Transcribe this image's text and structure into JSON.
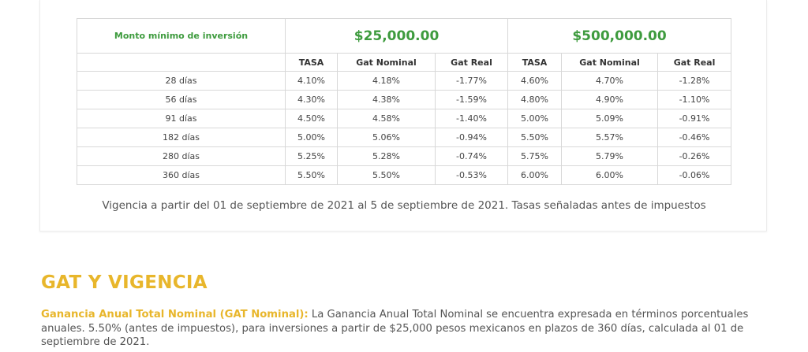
{
  "table": {
    "min_label": "Monto mínimo de inversión",
    "amount_a": "$25,000.00",
    "amount_b": "$500,000.00",
    "col_headers": [
      "TASA",
      "Gat Nominal",
      "Gat Real",
      "TASA",
      "Gat Nominal",
      "Gat Real"
    ],
    "rows": [
      {
        "term": "28 días",
        "a_tasa": "4.10%",
        "a_nom": "4.18%",
        "a_real": "-1.77%",
        "b_tasa": "4.60%",
        "b_nom": "4.70%",
        "b_real": "-1.28%"
      },
      {
        "term": "56 días",
        "a_tasa": "4.30%",
        "a_nom": "4.38%",
        "a_real": "-1.59%",
        "b_tasa": "4.80%",
        "b_nom": "4.90%",
        "b_real": "-1.10%"
      },
      {
        "term": "91 días",
        "a_tasa": "4.50%",
        "a_nom": "4.58%",
        "a_real": "-1.40%",
        "b_tasa": "5.00%",
        "b_nom": "5.09%",
        "b_real": "-0.91%"
      },
      {
        "term": "182 días",
        "a_tasa": "5.00%",
        "a_nom": "5.06%",
        "a_real": "-0.94%",
        "b_tasa": "5.50%",
        "b_nom": "5.57%",
        "b_real": "-0.46%"
      },
      {
        "term": "280 días",
        "a_tasa": "5.25%",
        "a_nom": "5.28%",
        "a_real": "-0.74%",
        "b_tasa": "5.75%",
        "b_nom": "5.79%",
        "b_real": "-0.26%"
      },
      {
        "term": "360 días",
        "a_tasa": "5.50%",
        "a_nom": "5.50%",
        "a_real": "-0.53%",
        "b_tasa": "6.00%",
        "b_nom": "6.00%",
        "b_real": "-0.06%"
      }
    ]
  },
  "vigencia_text": "Vigencia a partir del 01 de septiembre de 2021 al 5 de septiembre de 2021. Tasas señaladas antes de impuestos",
  "section": {
    "title": "GAT Y VIGENCIA",
    "lead": "Ganancia Anual Total Nominal (GAT Nominal):",
    "body": " La Ganancia Anual Total Nominal se encuentra expresada en términos porcentuales anuales. 5.50% (antes de impuestos), para inversiones a partir de $25,000 pesos mexicanos en plazos de 360 días, calculada al 01 de septiembre de 2021."
  },
  "colors": {
    "green": "#3e9b3e",
    "gold": "#e8b62b"
  }
}
